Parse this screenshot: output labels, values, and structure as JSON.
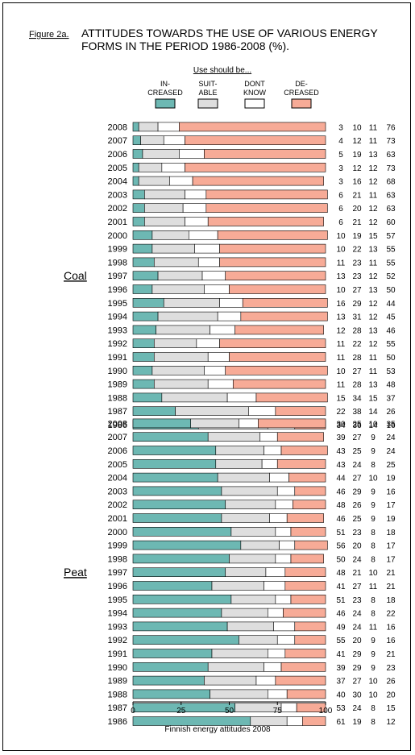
{
  "figure_label": "Figure 2a.",
  "title_line1": "ATTITUDES TOWARDS THE USE OF VARIOUS ENERGY",
  "title_line2": "FORMS IN THE PERIOD 1986-2008 (%).",
  "legend_heading": "Use should be...",
  "legend_items": [
    {
      "label1": "IN-",
      "label2": "CREASED",
      "color": "#6db8b3"
    },
    {
      "label1": "SUIT-",
      "label2": "ABLE",
      "color": "#dedede"
    },
    {
      "label1": "DONT",
      "label2": "KNOW",
      "color": "#ffffff"
    },
    {
      "label1": "DE-",
      "label2": "CREASED",
      "color": "#f7ab97"
    }
  ],
  "footer": "Finnish energy attitudes 2008",
  "chart_data": [
    {
      "type": "bar",
      "stacked": true,
      "orientation": "horizontal",
      "group_label": "Coal",
      "categories": [
        "2008",
        "2007",
        "2006",
        "2005",
        "2004",
        "2003",
        "2002",
        "2001",
        "2000",
        "1999",
        "1998",
        "1997",
        "1996",
        "1995",
        "1994",
        "1993",
        "1992",
        "1991",
        "1990",
        "1989",
        "1988",
        "1987",
        "1986"
      ],
      "series": [
        {
          "name": "IN-CREASED",
          "values": [
            3,
            4,
            5,
            3,
            3,
            6,
            6,
            6,
            10,
            10,
            11,
            13,
            10,
            16,
            13,
            12,
            11,
            11,
            10,
            11,
            15,
            22,
            34
          ]
        },
        {
          "name": "SUIT-ABLE",
          "values": [
            10,
            12,
            19,
            12,
            16,
            21,
            20,
            21,
            19,
            22,
            23,
            23,
            27,
            29,
            31,
            28,
            22,
            28,
            27,
            28,
            34,
            38,
            36
          ]
        },
        {
          "name": "DONT KNOW",
          "values": [
            11,
            11,
            13,
            12,
            12,
            11,
            12,
            12,
            15,
            13,
            11,
            12,
            13,
            12,
            12,
            13,
            12,
            11,
            11,
            13,
            15,
            14,
            14
          ]
        },
        {
          "name": "DE-CREASED",
          "values": [
            76,
            73,
            63,
            73,
            68,
            63,
            63,
            60,
            57,
            55,
            55,
            52,
            50,
            44,
            45,
            46,
            55,
            50,
            53,
            48,
            37,
            26,
            16
          ]
        }
      ],
      "xlim": [
        0,
        100
      ],
      "xticks": [
        "0",
        "25",
        "50",
        "75",
        "100"
      ]
    },
    {
      "type": "bar",
      "stacked": true,
      "orientation": "horizontal",
      "group_label": "Peat",
      "categories": [
        "2008",
        "2007",
        "2006",
        "2005",
        "2004",
        "2003",
        "2002",
        "2001",
        "2000",
        "1999",
        "1998",
        "1997",
        "1996",
        "1995",
        "1994",
        "1993",
        "1992",
        "1991",
        "1990",
        "1989",
        "1988",
        "1987",
        "1986"
      ],
      "series": [
        {
          "name": "IN-CREASED",
          "values": [
            30,
            39,
            43,
            43,
            44,
            46,
            48,
            46,
            51,
            56,
            50,
            48,
            41,
            51,
            46,
            49,
            55,
            41,
            39,
            37,
            40,
            53,
            61
          ]
        },
        {
          "name": "SUIT-ABLE",
          "values": [
            25,
            27,
            25,
            24,
            27,
            29,
            26,
            25,
            23,
            20,
            24,
            21,
            27,
            23,
            24,
            24,
            20,
            29,
            29,
            27,
            30,
            24,
            19
          ]
        },
        {
          "name": "DONT KNOW",
          "values": [
            10,
            9,
            9,
            8,
            10,
            9,
            9,
            9,
            8,
            8,
            8,
            10,
            11,
            8,
            8,
            11,
            9,
            9,
            9,
            10,
            10,
            8,
            8
          ]
        },
        {
          "name": "DE-CREASED",
          "values": [
            35,
            24,
            24,
            25,
            19,
            16,
            17,
            19,
            18,
            17,
            17,
            21,
            21,
            18,
            22,
            16,
            16,
            21,
            23,
            26,
            20,
            15,
            12
          ]
        }
      ],
      "xlim": [
        0,
        100
      ],
      "xticks": [
        "0",
        "25",
        "50",
        "75",
        "100"
      ]
    }
  ]
}
